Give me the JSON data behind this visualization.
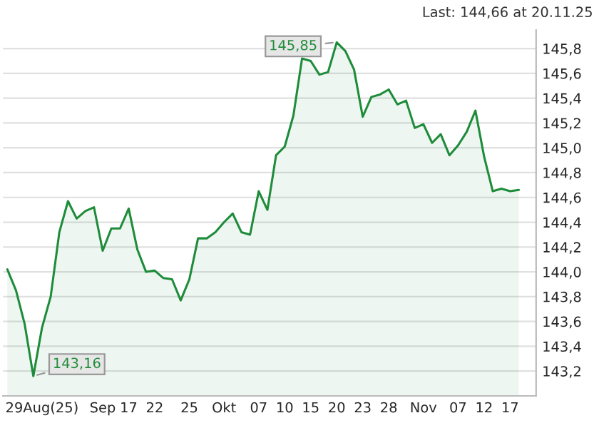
{
  "chart_data": {
    "type": "area",
    "title": "Last: 144,66 at 20.11.25",
    "categories": [
      null,
      null,
      null,
      null,
      "29Aug(25)",
      null,
      null,
      null,
      null,
      null,
      null,
      "Sep",
      null,
      null,
      "17",
      null,
      null,
      "22",
      null,
      null,
      null,
      "25",
      null,
      null,
      null,
      "Okt",
      null,
      null,
      null,
      "07",
      null,
      null,
      "10",
      null,
      null,
      "15",
      null,
      null,
      "20",
      null,
      null,
      "23",
      null,
      null,
      "28",
      null,
      null,
      null,
      "Nov",
      null,
      null,
      null,
      "07",
      null,
      null,
      "12",
      null,
      null,
      "17",
      null
    ],
    "series": [
      {
        "color": "#1e8c3a",
        "values": [
          144.02,
          143.85,
          143.58,
          143.16,
          143.55,
          143.8,
          144.32,
          144.57,
          144.43,
          144.49,
          144.52,
          144.17,
          144.35,
          144.35,
          144.51,
          144.18,
          144.0,
          144.01,
          143.95,
          143.94,
          143.77,
          143.94,
          144.27,
          144.27,
          144.32,
          144.4,
          144.47,
          144.32,
          144.3,
          144.65,
          144.5,
          144.94,
          145.01,
          145.26,
          145.72,
          145.7,
          145.59,
          145.61,
          145.85,
          145.78,
          145.63,
          145.25,
          145.41,
          145.43,
          145.47,
          145.35,
          145.38,
          145.16,
          145.19,
          145.04,
          145.11,
          144.94,
          145.02,
          145.13,
          145.3,
          144.93,
          144.65,
          144.67,
          144.65,
          144.66
        ]
      }
    ],
    "ylim": [
      143.0,
      145.95
    ],
    "yticks": [
      {
        "value": 143.2,
        "label": "143,2"
      },
      {
        "value": 143.4,
        "label": "143,4"
      },
      {
        "value": 143.6,
        "label": "143,6"
      },
      {
        "value": 143.8,
        "label": "143,8"
      },
      {
        "value": 144.0,
        "label": "144,0"
      },
      {
        "value": 144.2,
        "label": "144,2"
      },
      {
        "value": 144.4,
        "label": "144,4"
      },
      {
        "value": 144.6,
        "label": "144,6"
      },
      {
        "value": 144.8,
        "label": "144,8"
      },
      {
        "value": 145.0,
        "label": "145,0"
      },
      {
        "value": 145.2,
        "label": "145,2"
      },
      {
        "value": 145.4,
        "label": "145,4"
      },
      {
        "value": 145.6,
        "label": "145,6"
      },
      {
        "value": 145.8,
        "label": "145,8"
      }
    ],
    "grid": "y",
    "annotations": [
      "145,85",
      "143,16"
    ]
  }
}
